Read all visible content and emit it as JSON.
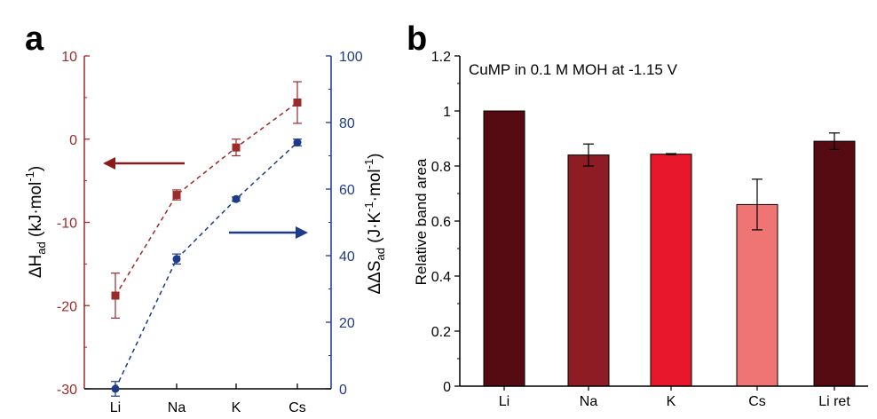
{
  "panel_a_letter": "a",
  "panel_b_letter": "b",
  "chart_data": [
    {
      "type": "line",
      "panel": "a",
      "categories": [
        "Li",
        "Na",
        "K",
        "Cs"
      ],
      "series": [
        {
          "axis": "left",
          "color": "#9B2A2A",
          "marker": "square",
          "values": [
            -18.8,
            -6.7,
            -1.0,
            4.4
          ],
          "errors": [
            2.7,
            0.6,
            1.0,
            2.5
          ]
        },
        {
          "axis": "right",
          "color": "#1E3A8A",
          "marker": "circle",
          "values": [
            0,
            39,
            57,
            74
          ],
          "errors": [
            2.2,
            1.5,
            0.6,
            1.0
          ]
        }
      ],
      "ylabel_left": {
        "main": "ΔH",
        "sub": "ad",
        "unit": " (kJ·mol",
        "sup": "-1",
        "close": ")"
      },
      "ylabel_right": {
        "main": "ΔΔS",
        "sub": "ad",
        "unit": " (J·K",
        "sup1": "-1",
        "mid": "·mol",
        "sup2": "-1",
        "close": ")"
      },
      "ylim_left": [
        -30,
        10
      ],
      "ylim_right": [
        0,
        100
      ],
      "yticks_left": [
        -30,
        -20,
        -10,
        0,
        10
      ],
      "yticks_right": [
        0,
        20,
        40,
        60,
        80,
        100
      ],
      "left_axis_color": "#9B2A2A",
      "right_axis_color": "#1E3A8A",
      "arrows": [
        {
          "direction": "left",
          "color": "#8B1A1A"
        },
        {
          "direction": "right",
          "color": "#1E3A8A"
        }
      ]
    },
    {
      "type": "bar",
      "panel": "b",
      "title": "CuMP in 0.1 M MOH at -1.15 V",
      "categories": [
        "Li",
        "Na",
        "K",
        "Cs",
        "Li ret"
      ],
      "values": [
        1.0,
        0.84,
        0.843,
        0.66,
        0.89
      ],
      "errors": [
        0,
        0.04,
        0.002,
        0.092,
        0.03
      ],
      "colors": [
        "#560B12",
        "#8E1C24",
        "#E8172B",
        "#EF7474",
        "#560B12"
      ],
      "ylabel": "Relative band area",
      "ylim": [
        0,
        1.2
      ],
      "yticks": [
        "0",
        "0.2",
        "0.4",
        "0.6",
        "0.8",
        "1",
        "1.2"
      ]
    }
  ]
}
